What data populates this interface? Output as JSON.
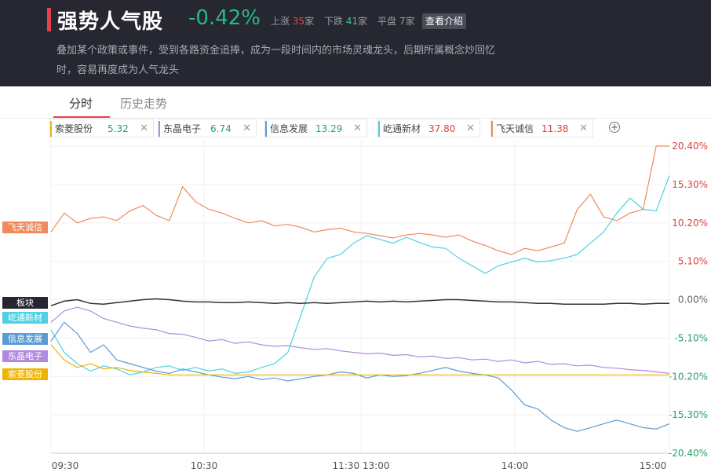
{
  "header": {
    "title": "强势人气股",
    "change": "-0.42%",
    "stats": {
      "up_label": "上涨",
      "up_count": "35",
      "up_unit": "家",
      "down_label": "下跌",
      "down_count": "41",
      "down_unit": "家",
      "flat_label": "平盘",
      "flat_count": "7",
      "flat_unit": "家"
    },
    "intro_button": "查看介绍",
    "description_line1": "叠加某个政策或事件，受到各路资金追捧，成为一段时间内的市场灵魂龙头，后期所属概念炒回忆",
    "description_line2": "时，容易再度成为人气龙头"
  },
  "tabs": [
    {
      "label": "分时",
      "active": true
    },
    {
      "label": "历史走势",
      "active": false
    }
  ],
  "legend": [
    {
      "name": "索菱股份",
      "value": "5.32",
      "color": "#f0b400",
      "value_color": "#26a269"
    },
    {
      "name": "东晶电子",
      "value": "6.74",
      "color": "#b18ae0",
      "value_color": "#26a269"
    },
    {
      "name": "信息发展",
      "value": "13.29",
      "color": "#5b9bd5",
      "value_color": "#26a269"
    },
    {
      "name": "屹通新材",
      "value": "37.80",
      "color": "#4fd0e4",
      "value_color": "#e04040"
    },
    {
      "name": "飞天诚信",
      "value": "11.38",
      "color": "#f08a5d",
      "value_color": "#e04040"
    }
  ],
  "legend_close": "✕",
  "add_icon": "plus-circle-icon",
  "chart_data": {
    "type": "line",
    "x_ticks": [
      "09:30",
      "10:30",
      "11:30 13:00",
      "14:00",
      "15:00"
    ],
    "y_ticks": [
      "20.40%",
      "15.30%",
      "10.20%",
      "5.10%",
      "0.00%",
      "-5.10%",
      "-10.20%",
      "-15.30%",
      "-20.40%"
    ],
    "ylim": [
      -20.4,
      20.4
    ],
    "x_points": 48,
    "series": [
      {
        "name": "飞天诚信",
        "color": "#f08a5d",
        "values": [
          9.0,
          11.5,
          10.2,
          10.8,
          11.0,
          10.5,
          11.8,
          12.5,
          11.2,
          10.5,
          15.0,
          13.0,
          12.0,
          11.5,
          10.8,
          10.2,
          10.5,
          9.8,
          10.0,
          9.6,
          9.0,
          9.3,
          9.5,
          9.0,
          8.8,
          8.5,
          8.2,
          8.6,
          8.8,
          8.6,
          8.3,
          8.6,
          7.8,
          7.2,
          6.5,
          6.0,
          6.8,
          6.5,
          7.0,
          7.5,
          12.0,
          14.0,
          11.0,
          10.5,
          11.5,
          12.0,
          20.4,
          20.4
        ]
      },
      {
        "name": "屹通新材",
        "color": "#4fd0e4",
        "values": [
          -4.0,
          -7.0,
          -8.5,
          -9.5,
          -8.8,
          -9.2,
          -10.0,
          -9.6,
          -9.0,
          -8.8,
          -9.4,
          -9.0,
          -9.5,
          -9.2,
          -9.8,
          -9.6,
          -9.0,
          -8.5,
          -7.0,
          -2.0,
          3.0,
          5.5,
          6.0,
          7.5,
          8.5,
          8.0,
          7.5,
          8.3,
          7.6,
          7.0,
          6.8,
          5.5,
          4.5,
          3.5,
          4.5,
          5.0,
          5.5,
          5.0,
          5.2,
          5.5,
          6.0,
          7.5,
          9.0,
          11.5,
          13.5,
          12.0,
          11.8,
          16.5
        ]
      },
      {
        "name": "信息发展",
        "color": "#5b9bd5",
        "values": [
          -5.5,
          -3.0,
          -4.5,
          -7.0,
          -6.0,
          -8.0,
          -8.5,
          -9.0,
          -9.5,
          -9.8,
          -9.2,
          -9.6,
          -10.0,
          -10.3,
          -10.5,
          -10.2,
          -10.6,
          -10.4,
          -10.8,
          -10.5,
          -10.2,
          -10.0,
          -9.6,
          -9.8,
          -10.4,
          -10.0,
          -10.2,
          -10.1,
          -9.8,
          -9.4,
          -9.0,
          -9.5,
          -9.8,
          -10.0,
          -10.4,
          -12.0,
          -14.0,
          -14.5,
          -16.0,
          -17.0,
          -17.5,
          -17.0,
          -16.5,
          -16.0,
          -16.5,
          -17.0,
          -17.2,
          -16.5
        ]
      },
      {
        "name": "东晶电子",
        "color": "#b18ae0",
        "values": [
          -3.0,
          -1.5,
          -1.0,
          -1.5,
          -2.5,
          -3.0,
          -3.5,
          -3.8,
          -4.0,
          -4.5,
          -4.6,
          -5.0,
          -5.5,
          -5.3,
          -5.8,
          -5.6,
          -6.0,
          -6.2,
          -6.1,
          -6.4,
          -6.6,
          -6.5,
          -6.8,
          -7.0,
          -7.2,
          -7.1,
          -7.4,
          -7.3,
          -7.6,
          -7.5,
          -7.8,
          -7.7,
          -8.0,
          -7.9,
          -8.2,
          -8.0,
          -8.4,
          -8.2,
          -8.6,
          -8.5,
          -8.8,
          -8.7,
          -9.0,
          -9.1,
          -9.3,
          -9.4,
          -9.6,
          -9.8
        ]
      },
      {
        "name": "索菱股份",
        "color": "#f0b400",
        "values": [
          -6.0,
          -8.0,
          -9.0,
          -8.5,
          -9.2,
          -9.0,
          -9.4,
          -9.6,
          -9.8,
          -10.0,
          -10.0,
          -10.0,
          -10.0,
          -10.0,
          -10.0,
          -10.0,
          -10.0,
          -10.0,
          -10.0,
          -10.0,
          -10.0,
          -10.0,
          -10.0,
          -10.0,
          -10.0,
          -10.0,
          -10.0,
          -10.0,
          -10.0,
          -10.0,
          -10.0,
          -10.0,
          -10.0,
          -10.0,
          -10.0,
          -10.0,
          -10.0,
          -10.0,
          -10.0,
          -10.0,
          -10.0,
          -10.0,
          -10.0,
          -10.0,
          -10.0,
          -10.0,
          -10.0,
          -10.0
        ]
      },
      {
        "name": "板块",
        "color": "#333333",
        "values": [
          -0.8,
          -0.2,
          0.0,
          -0.5,
          -0.6,
          -0.4,
          -0.2,
          0.0,
          0.1,
          0.0,
          -0.2,
          -0.3,
          -0.3,
          -0.4,
          -0.4,
          -0.3,
          -0.4,
          -0.5,
          -0.4,
          -0.5,
          -0.4,
          -0.5,
          -0.4,
          -0.3,
          -0.2,
          -0.3,
          -0.2,
          -0.3,
          -0.2,
          -0.1,
          0.0,
          0.0,
          -0.1,
          -0.2,
          -0.3,
          -0.3,
          -0.4,
          -0.5,
          -0.5,
          -0.6,
          -0.6,
          -0.6,
          -0.6,
          -0.5,
          -0.5,
          -0.6,
          -0.5,
          -0.5
        ]
      }
    ],
    "tags": [
      {
        "label": "飞天诚信",
        "color": "#f08a5d",
        "y": 9.5
      },
      {
        "label": "板块",
        "color": "#262730",
        "y": -0.5
      },
      {
        "label": "屹通新材",
        "color": "#4fd0e4",
        "y": -2.5
      },
      {
        "label": "信息发展",
        "color": "#5b9bd5",
        "y": -5.3
      },
      {
        "label": "东晶电子",
        "color": "#b18ae0",
        "y": -7.6
      },
      {
        "label": "索菱股份",
        "color": "#f0b400",
        "y": -10.0
      }
    ]
  }
}
